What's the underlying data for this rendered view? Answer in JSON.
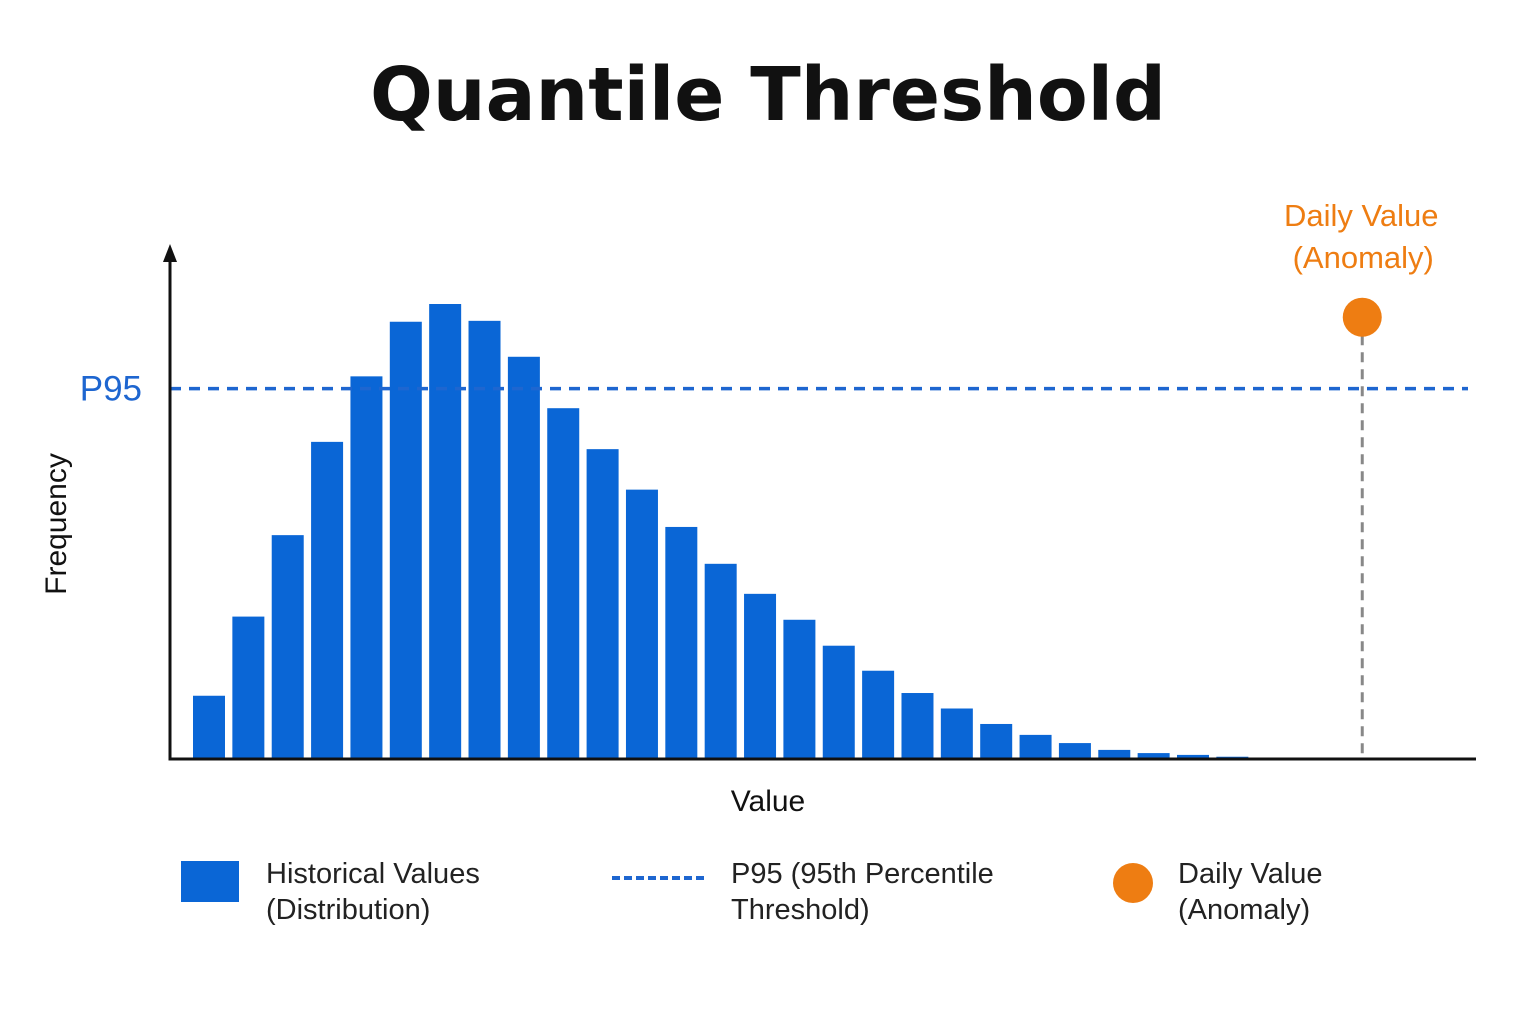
{
  "title": "Quantile Threshold",
  "colors": {
    "bars": "#0a66d6",
    "threshold": "#1e66d0",
    "anomaly": "#ee7d12",
    "axis": "#111111",
    "drop_line": "#888888"
  },
  "legend": {
    "historical_line1": "Historical Values",
    "historical_line2": "(Distribution)",
    "p95_line1": "P95 (95th Percentile",
    "p95_line2": "Threshold)",
    "daily_line1": "Daily Value",
    "daily_line2": "(Anomaly)"
  },
  "chart_data": {
    "type": "bar",
    "title": "Quantile Threshold",
    "xlabel": "Value",
    "ylabel": "Frequency",
    "bin_count": 28,
    "values": [
      13.9,
      31.3,
      49.2,
      69.7,
      84.1,
      96.1,
      100,
      96.3,
      88.4,
      77.1,
      68.1,
      59.2,
      51.0,
      42.9,
      36.3,
      30.6,
      24.9,
      19.4,
      14.5,
      11.1,
      7.7,
      5.3,
      3.5,
      2.0,
      1.3,
      0.9,
      0.5,
      0
    ],
    "ylim": [
      0,
      112
    ],
    "threshold": {
      "label": "P95",
      "value": 81.4,
      "style": "dashed"
    },
    "anomaly": {
      "label_line1": "Daily Value",
      "label_line2": "(Anomaly)",
      "bin_position": 29.3,
      "value": 97.1
    },
    "grid": false,
    "legend_position": "bottom"
  }
}
